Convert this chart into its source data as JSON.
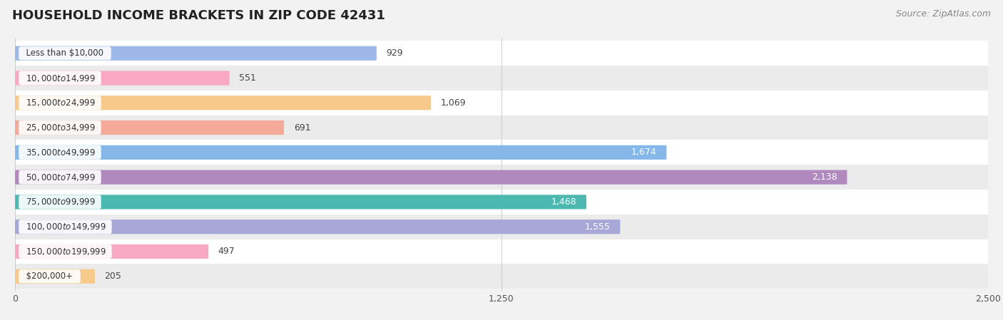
{
  "title": "HOUSEHOLD INCOME BRACKETS IN ZIP CODE 42431",
  "source": "Source: ZipAtlas.com",
  "categories": [
    "Less than $10,000",
    "$10,000 to $14,999",
    "$15,000 to $24,999",
    "$25,000 to $34,999",
    "$35,000 to $49,999",
    "$50,000 to $74,999",
    "$75,000 to $99,999",
    "$100,000 to $149,999",
    "$150,000 to $199,999",
    "$200,000+"
  ],
  "values": [
    929,
    551,
    1069,
    691,
    1674,
    2138,
    1468,
    1555,
    497,
    205
  ],
  "bar_colors": [
    "#9db8e8",
    "#f9a8c4",
    "#f7c98a",
    "#f4a999",
    "#85b8e8",
    "#b08abf",
    "#4db8b0",
    "#a8a8d8",
    "#f9a8c4",
    "#f7c98a"
  ],
  "bg_color": "#f2f2f2",
  "xlim": [
    0,
    2500
  ],
  "xticks": [
    0,
    1250,
    2500
  ],
  "title_fontsize": 13,
  "label_fontsize": 9,
  "value_fontsize": 9
}
